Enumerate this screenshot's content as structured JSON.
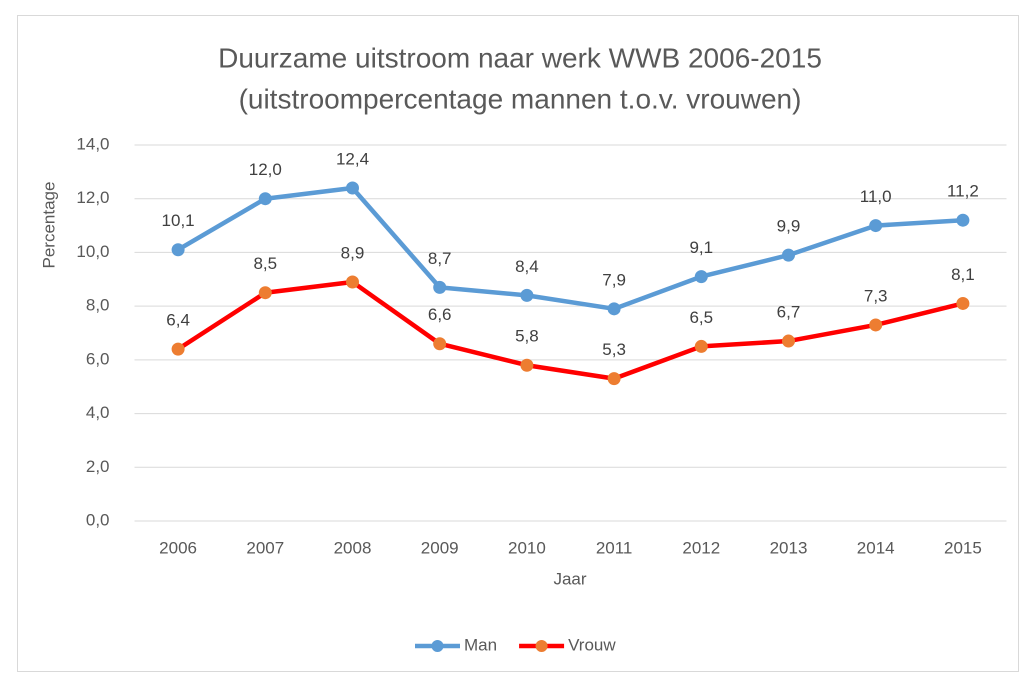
{
  "chart_data": {
    "type": "line",
    "title": "Duurzame uitstroom naar werk WWB 2006-2015",
    "subtitle": "(uitstroompercentage mannen t.o.v. vrouwen)",
    "x_label": "Jaar",
    "y_label": "Percentage",
    "categories": [
      "2006",
      "2007",
      "2008",
      "2009",
      "2010",
      "2011",
      "2012",
      "2013",
      "2014",
      "2015"
    ],
    "series": [
      {
        "name": "Man",
        "color": "#5b9bd5",
        "marker_color": "#5b9bd5",
        "values": [
          10.1,
          12.0,
          12.4,
          8.7,
          8.4,
          7.9,
          9.1,
          9.9,
          11.0,
          11.2
        ],
        "value_labels": [
          "10,1",
          "12,0",
          "12,4",
          "8,7",
          "8,4",
          "7,9",
          "9,1",
          "9,9",
          "11,0",
          "11,2"
        ]
      },
      {
        "name": "Vrouw",
        "color": "#ff0000",
        "marker_color": "#ed7d31",
        "values": [
          6.4,
          8.5,
          8.9,
          6.6,
          5.8,
          5.3,
          6.5,
          6.7,
          7.3,
          8.1
        ],
        "value_labels": [
          "6,4",
          "8,5",
          "8,9",
          "6,6",
          "5,8",
          "5,3",
          "6,5",
          "6,7",
          "7,3",
          "8,1"
        ]
      }
    ],
    "ylim": [
      0,
      14
    ],
    "yticks": [
      {
        "value": 0,
        "label": "0,0"
      },
      {
        "value": 2,
        "label": "2,0"
      },
      {
        "value": 4,
        "label": "4,0"
      },
      {
        "value": 6,
        "label": "6,0"
      },
      {
        "value": 8,
        "label": "8,0"
      },
      {
        "value": 10,
        "label": "10,0"
      },
      {
        "value": 12,
        "label": "12,0"
      },
      {
        "value": 14,
        "label": "14,0"
      }
    ],
    "grid": true,
    "legend": "bottom"
  }
}
